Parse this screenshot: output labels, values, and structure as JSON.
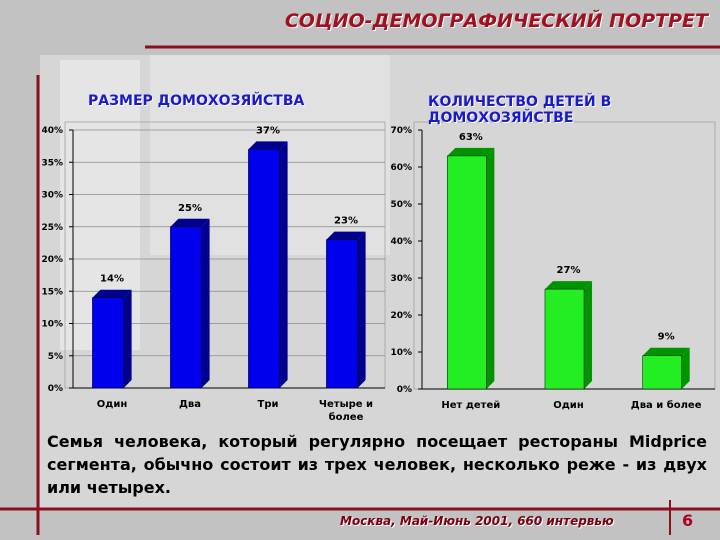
{
  "slide": {
    "title": "СОЦИО-ДЕМОГРАФИЧЕСКИЙ ПОРТРЕТ",
    "text": "Семья человека, который регулярно посещает рестораны Midprice сегмента, обычно состоит из трех человек, несколько реже - из двух или четырех.",
    "footer": "Москва, Май-Июнь 2001, 660 интервью",
    "page": "6"
  },
  "chart_data": [
    {
      "type": "bar",
      "title": "РАЗМЕР ДОМОХОЗЯЙСТВА",
      "categories": [
        "Один",
        "Два",
        "Три",
        "Четыре и более"
      ],
      "values": [
        14,
        25,
        37,
        23
      ],
      "value_labels": [
        "14%",
        "25%",
        "37%",
        "23%"
      ],
      "color": "#0000ee",
      "side_color": "#00008f",
      "ylim": [
        0,
        40
      ],
      "yticks": [
        {
          "value": 0,
          "label": "0%"
        },
        {
          "value": 5,
          "label": "5%"
        },
        {
          "value": 10,
          "label": "10%"
        },
        {
          "value": 15,
          "label": "15%"
        },
        {
          "value": 20,
          "label": "20%"
        },
        {
          "value": 25,
          "label": "25%"
        },
        {
          "value": 30,
          "label": "30%"
        },
        {
          "value": 35,
          "label": "35%"
        },
        {
          "value": 40,
          "label": "40%"
        }
      ],
      "grid": true
    },
    {
      "type": "bar",
      "title": "КОЛИЧЕСТВО ДЕТЕЙ В ДОМОХОЗЯЙСТВЕ",
      "categories": [
        "Нет детей",
        "Один",
        "Два и более"
      ],
      "values": [
        63,
        27,
        9
      ],
      "value_labels": [
        "63%",
        "27%",
        "9%"
      ],
      "color": "#22ee22",
      "side_color": "#009400",
      "ylim": [
        0,
        70
      ],
      "yticks": [
        {
          "value": 0,
          "label": "0%"
        },
        {
          "value": 10,
          "label": "10%"
        },
        {
          "value": 20,
          "label": "20%"
        },
        {
          "value": 30,
          "label": "30%"
        },
        {
          "value": 40,
          "label": "40%"
        },
        {
          "value": 50,
          "label": "50%"
        },
        {
          "value": 60,
          "label": "60%"
        },
        {
          "value": 70,
          "label": "70%"
        }
      ],
      "grid": false
    }
  ]
}
